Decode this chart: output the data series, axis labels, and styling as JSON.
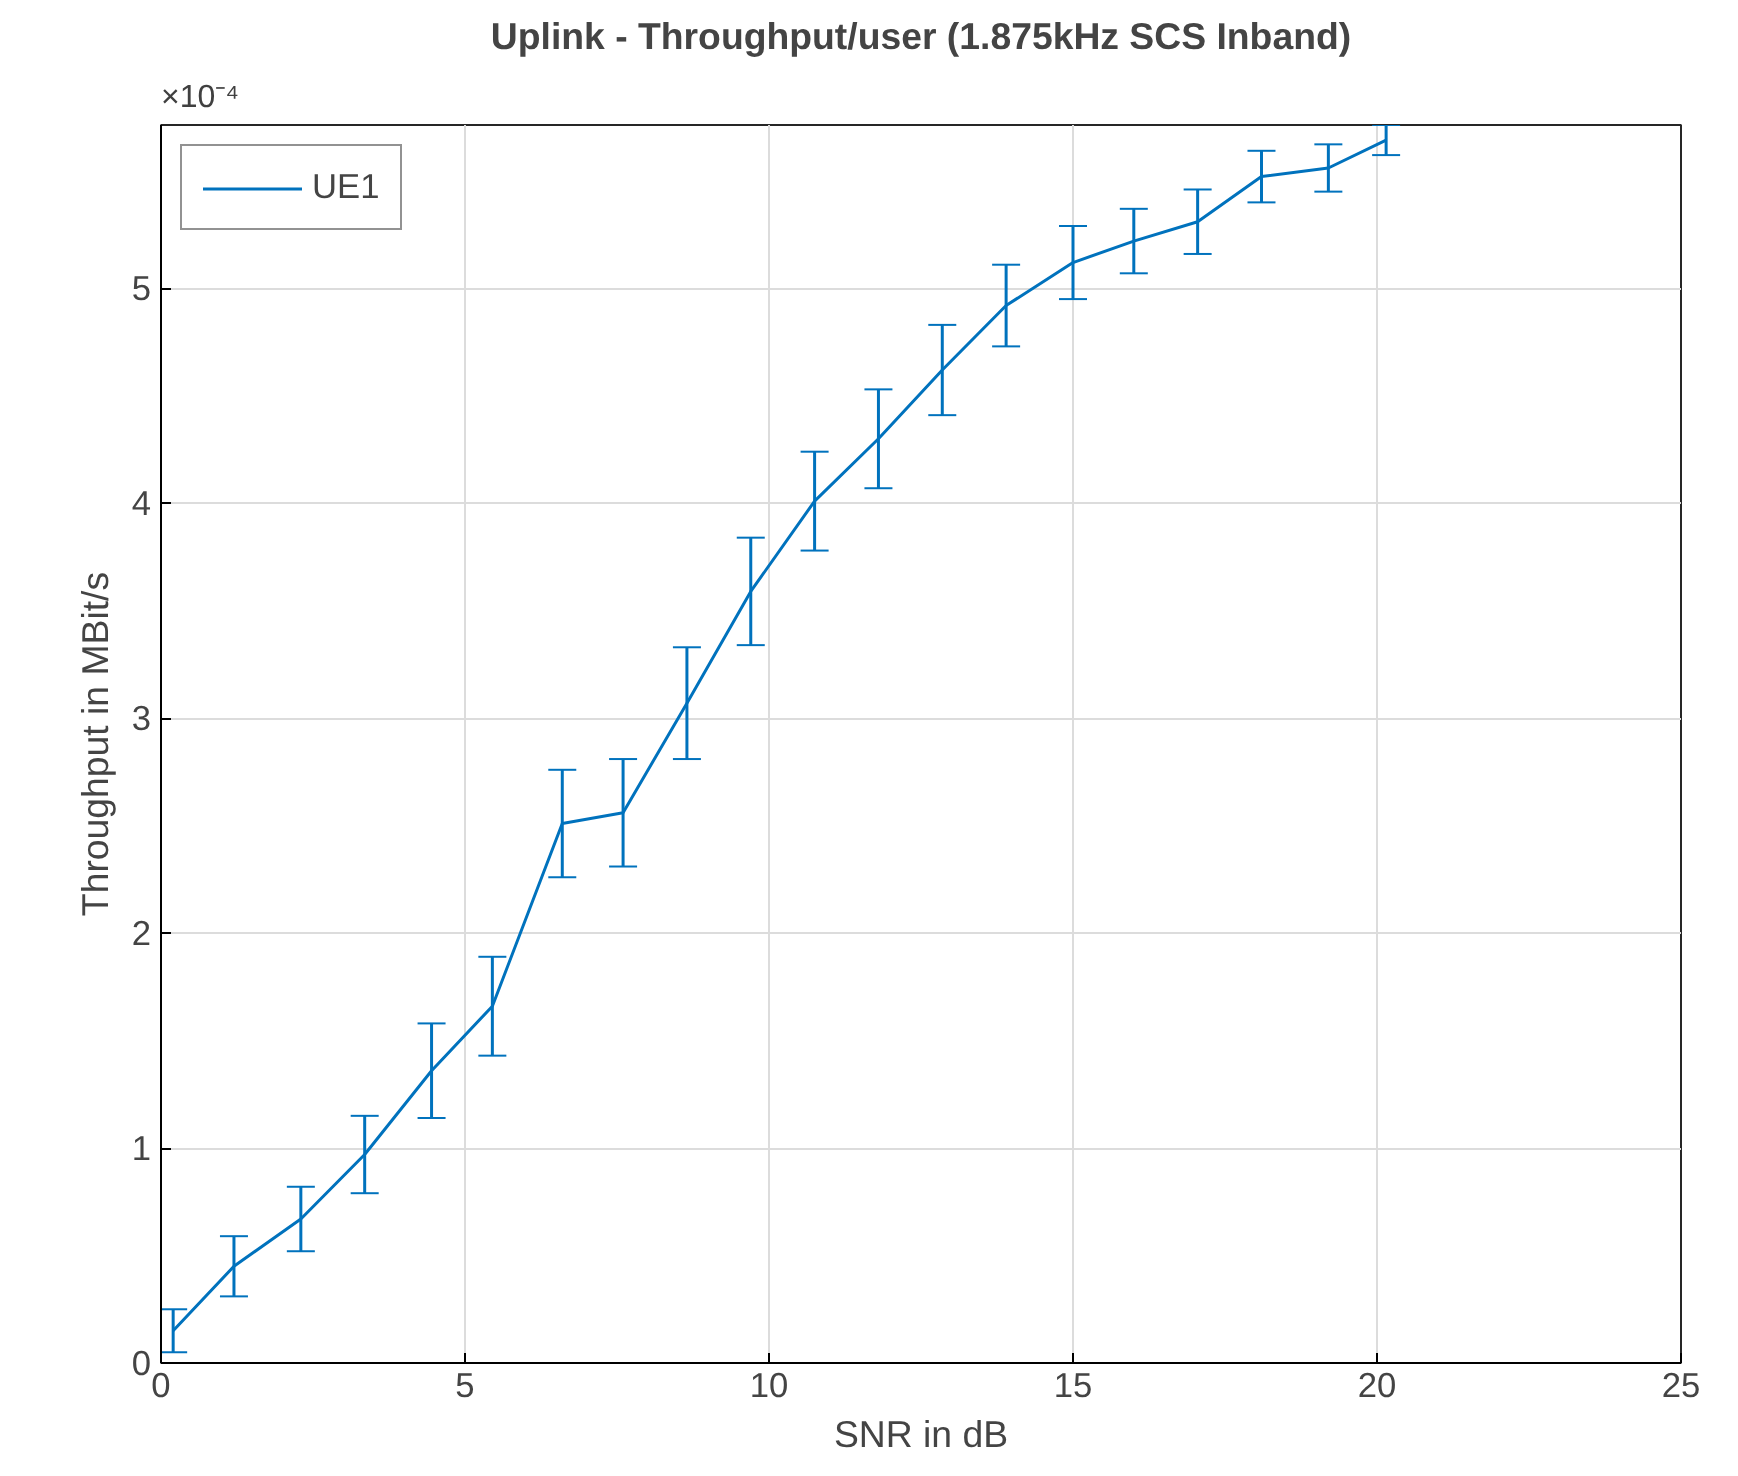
{
  "chart_data": {
    "type": "line",
    "title": "Uplink - Throughput/user (1.875kHz SCS Inband)",
    "xlabel": "SNR in dB",
    "ylabel": "Throughput in MBit/s",
    "annotations": [
      "×10⁻⁴"
    ],
    "x": [
      0.2,
      1.2,
      2.3,
      3.35,
      4.45,
      5.45,
      6.6,
      7.6,
      8.65,
      9.7,
      10.75,
      11.8,
      12.85,
      13.9,
      15.0,
      16.0,
      17.05,
      18.1,
      19.2,
      20.15
    ],
    "series": [
      {
        "name": "UE1",
        "color": "#0072bd",
        "values": [
          0.15,
          0.45,
          0.67,
          0.97,
          1.36,
          1.66,
          2.51,
          2.56,
          3.07,
          3.59,
          4.01,
          4.3,
          4.62,
          4.92,
          5.12,
          5.22,
          5.31,
          5.52,
          5.56,
          5.69
        ],
        "errors": [
          0.1,
          0.14,
          0.15,
          0.18,
          0.22,
          0.23,
          0.25,
          0.25,
          0.26,
          0.25,
          0.23,
          0.23,
          0.21,
          0.19,
          0.17,
          0.15,
          0.15,
          0.12,
          0.11,
          0.07
        ]
      }
    ],
    "xlim": [
      0,
      25
    ],
    "xticks": [
      0,
      5,
      10,
      15,
      20,
      25
    ],
    "ylim": [
      0,
      5.76
    ],
    "yticks": [
      0,
      1,
      2,
      3,
      4,
      5
    ],
    "grid": true,
    "legend": "top left",
    "marker": "none",
    "line_style": "solid"
  }
}
